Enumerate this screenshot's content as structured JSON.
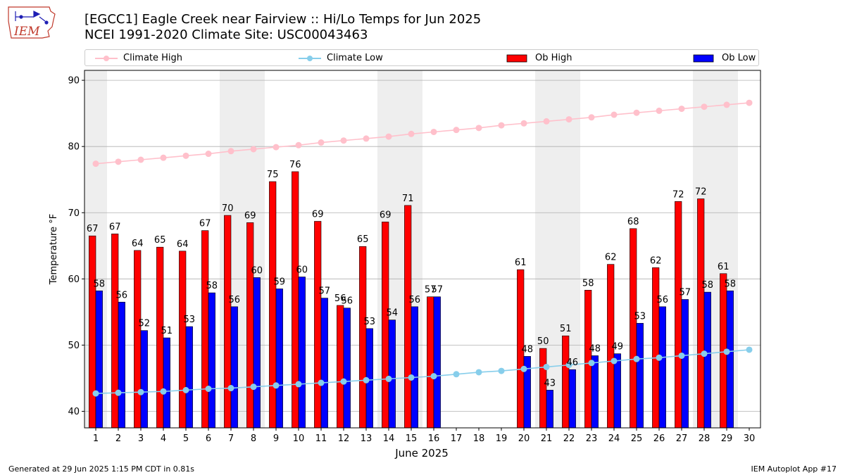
{
  "header": {
    "title_line1": "[EGCC1] Eagle Creek near Fairview :: Hi/Lo Temps for Jun 2025",
    "title_line2": "NCEI 1991-2020 Climate Site: USC00043463",
    "logo_text": "IEM"
  },
  "footer": {
    "generated": "Generated at 29 Jun 2025 1:15 PM CDT in 0.81s",
    "app": "IEM Autoplot App #17"
  },
  "colors": {
    "climate_high": "#ffc0cb",
    "climate_low": "#87ceeb",
    "ob_high": "#ff0000",
    "ob_low": "#0000ff",
    "weekend_shade": "#eeeeee",
    "grid": "#b0b0b0"
  },
  "chart_data": {
    "type": "bar",
    "title": "[EGCC1] Eagle Creek near Fairview :: Hi/Lo Temps for Jun 2025",
    "xlabel": "June 2025",
    "ylabel": "Temperature °F",
    "ylim": [
      37.5,
      91.5
    ],
    "yticks": [
      40,
      50,
      60,
      70,
      80,
      90
    ],
    "grid": true,
    "legend_position": "top",
    "days": [
      1,
      2,
      3,
      4,
      5,
      6,
      7,
      8,
      9,
      10,
      11,
      12,
      13,
      14,
      15,
      16,
      17,
      18,
      19,
      20,
      21,
      22,
      23,
      24,
      25,
      26,
      27,
      28,
      29,
      30
    ],
    "weekend_days": [
      1,
      7,
      8,
      14,
      15,
      21,
      22,
      28,
      29
    ],
    "series": [
      {
        "name": "Climate High",
        "kind": "line",
        "values": [
          77.4,
          77.7,
          78.0,
          78.3,
          78.6,
          78.9,
          79.3,
          79.6,
          79.9,
          80.2,
          80.6,
          80.9,
          81.2,
          81.5,
          81.9,
          82.2,
          82.5,
          82.8,
          83.2,
          83.5,
          83.8,
          84.1,
          84.4,
          84.8,
          85.1,
          85.4,
          85.7,
          86.0,
          86.3,
          86.6
        ]
      },
      {
        "name": "Climate Low",
        "kind": "line",
        "values": [
          42.7,
          42.8,
          42.9,
          43.0,
          43.2,
          43.4,
          43.5,
          43.7,
          43.9,
          44.1,
          44.3,
          44.5,
          44.7,
          44.9,
          45.1,
          45.3,
          45.6,
          45.9,
          46.1,
          46.4,
          46.7,
          47.0,
          47.3,
          47.6,
          47.9,
          48.1,
          48.4,
          48.7,
          49.0,
          49.3
        ]
      },
      {
        "name": "Ob High",
        "kind": "bar",
        "values": [
          66.5,
          66.8,
          64.3,
          64.8,
          64.2,
          67.3,
          69.6,
          68.5,
          74.7,
          76.2,
          68.7,
          56.0,
          64.9,
          68.6,
          71.1,
          57.3,
          null,
          null,
          null,
          61.4,
          49.5,
          51.4,
          58.3,
          62.2,
          67.6,
          61.7,
          71.7,
          72.1,
          60.8,
          null
        ],
        "labels": [
          "67",
          "67",
          "64",
          "65",
          "64",
          "67",
          "70",
          "69",
          "75",
          "76",
          "69",
          "56",
          "65",
          "69",
          "71",
          "57",
          "",
          "",
          "",
          "61",
          "50",
          "51",
          "58",
          "62",
          "68",
          "62",
          "72",
          "72",
          "61",
          ""
        ]
      },
      {
        "name": "Ob Low",
        "kind": "bar",
        "values": [
          58.2,
          56.5,
          52.2,
          51.1,
          52.8,
          57.9,
          55.8,
          60.2,
          58.5,
          60.3,
          57.1,
          55.6,
          52.5,
          53.8,
          55.8,
          57.3,
          null,
          null,
          null,
          48.3,
          43.2,
          46.3,
          48.4,
          48.7,
          53.3,
          55.8,
          56.9,
          58.0,
          58.2,
          null
        ],
        "labels": [
          "58",
          "56",
          "52",
          "51",
          "53",
          "58",
          "56",
          "60",
          "59",
          "60",
          "57",
          "56",
          "53",
          "54",
          "56",
          "57",
          "",
          "",
          "",
          "48",
          "43",
          "46",
          "48",
          "49",
          "53",
          "56",
          "57",
          "58",
          "58",
          ""
        ]
      }
    ]
  }
}
